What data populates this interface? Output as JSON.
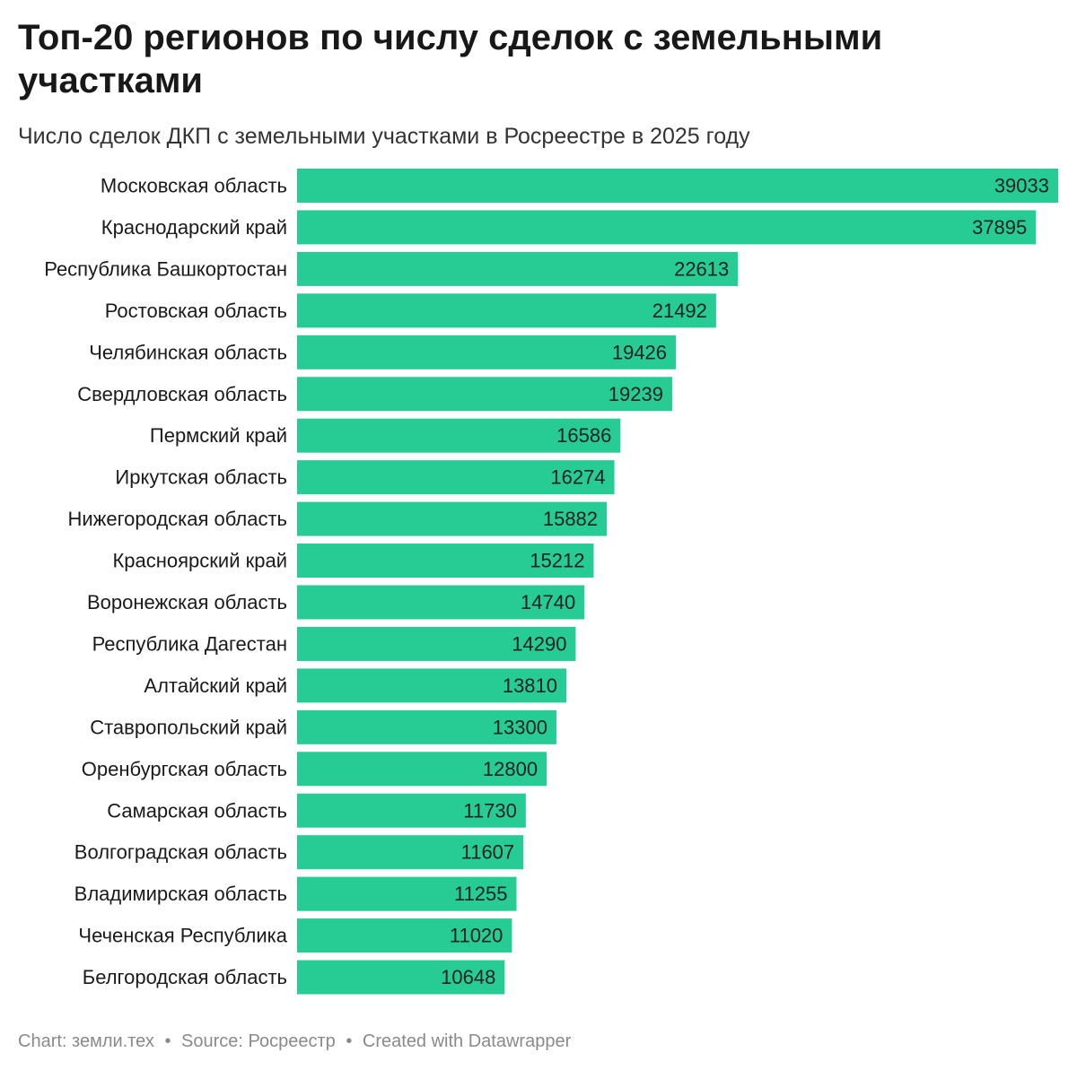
{
  "header": {
    "title": "Топ-20 регионов по числу сделок с земельными участками",
    "subtitle": "Число сделок ДКП с земельными участками в Росреестре в 2025 году"
  },
  "footer": {
    "chart_label": "Chart:",
    "chart_value": "земли.тех",
    "source_label": "Source:",
    "source_value": "Росреестр",
    "created": "Created with Datawrapper",
    "separator": "•"
  },
  "colors": {
    "bar": "#26cc93",
    "value_text": "#222222",
    "label_text": "#1a1a1a"
  },
  "chart_data": {
    "type": "bar",
    "orientation": "horizontal",
    "title": "Топ-20 регионов по числу сделок с земельными участками",
    "subtitle": "Число сделок ДКП с земельными участками в Росреестре в 2025 году",
    "xlabel": "",
    "ylabel": "",
    "xlim": [
      0,
      39033
    ],
    "grid": false,
    "categories": [
      "Московская область",
      "Краснодарский край",
      "Республика Башкортостан",
      "Ростовская область",
      "Челябинская область",
      "Свердловская область",
      "Пермский край",
      "Иркутская область",
      "Нижегородская область",
      "Красноярский край",
      "Воронежская область",
      "Республика Дагестан",
      "Алтайский край",
      "Ставропольский край",
      "Оренбургская область",
      "Самарская область",
      "Волгоградская область",
      "Владимирская область",
      "Чеченская Республика",
      "Белгородская область"
    ],
    "values": [
      39033,
      37895,
      22613,
      21492,
      19426,
      19239,
      16586,
      16274,
      15882,
      15212,
      14740,
      14290,
      13810,
      13300,
      12800,
      11730,
      11607,
      11255,
      11020,
      10648
    ]
  }
}
